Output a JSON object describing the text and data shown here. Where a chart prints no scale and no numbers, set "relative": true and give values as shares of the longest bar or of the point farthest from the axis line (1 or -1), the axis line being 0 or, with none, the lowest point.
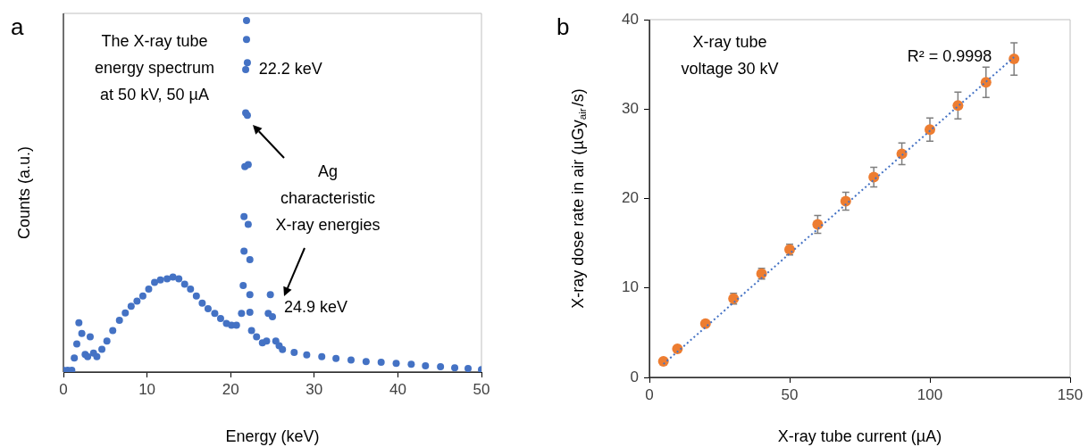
{
  "chart_data": [
    {
      "type": "scatter",
      "xlabel": "Energy (keV)",
      "ylabel": "Counts (a.u.)",
      "relative": true,
      "xlim": [
        0,
        50
      ],
      "xticks": [
        0,
        10,
        20,
        30,
        40,
        50
      ],
      "marker": "circle",
      "series": [
        {
          "color": "#4472c4",
          "x": [
            0,
            0.5,
            1.0,
            1.3,
            1.6,
            1.85,
            2.2,
            2.6,
            2.9,
            3.2,
            3.6,
            4.0,
            4.6,
            5.2,
            5.9,
            6.7,
            7.4,
            8.1,
            8.8,
            9.5,
            10.2,
            10.9,
            11.6,
            12.4,
            13.1,
            13.8,
            14.5,
            15.2,
            15.9,
            16.6,
            17.3,
            18.1,
            18.8,
            19.5,
            20.1,
            20.7,
            21.3,
            21.5,
            21.6,
            21.6,
            21.7,
            21.8,
            21.8,
            21.9,
            21.9,
            22.0,
            22.0,
            22.1,
            22.1,
            22.3,
            22.3,
            22.3,
            22.5,
            23.1,
            23.8,
            24.3,
            24.5,
            24.75,
            25.0,
            25.4,
            25.8,
            26.2,
            27.6,
            29.1,
            30.9,
            32.6,
            34.4,
            36.2,
            38.0,
            39.8,
            41.6,
            43.3,
            45.1,
            46.8,
            48.4,
            50
          ],
          "values": [
            0.005,
            0.005,
            0.005,
            0.04,
            0.08,
            0.14,
            0.11,
            0.05,
            0.044,
            0.1,
            0.054,
            0.044,
            0.065,
            0.088,
            0.118,
            0.147,
            0.168,
            0.187,
            0.202,
            0.216,
            0.236,
            0.255,
            0.262,
            0.265,
            0.27,
            0.265,
            0.25,
            0.236,
            0.216,
            0.196,
            0.18,
            0.167,
            0.152,
            0.138,
            0.133,
            0.133,
            0.167,
            0.246,
            0.344,
            0.442,
            0.584,
            0.737,
            0.86,
            0.946,
            1,
            0.88,
            0.73,
            0.59,
            0.42,
            0.32,
            0.22,
            0.17,
            0.118,
            0.1,
            0.083,
            0.088,
            0.167,
            0.22,
            0.157,
            0.088,
            0.075,
            0.064,
            0.056,
            0.049,
            0.044,
            0.039,
            0.034,
            0.03,
            0.028,
            0.025,
            0.022,
            0.018,
            0.015,
            0.012,
            0.01,
            0.007
          ]
        }
      ],
      "annotations": [
        "a",
        "The X-ray tube energy spectrum at 50 kV, 50 µA",
        {
          "text": "22.2 keV",
          "x": 22.2,
          "y": 0.86
        },
        "Ag characteristic X-ray energies",
        {
          "text": "24.9 keV",
          "x": 24.9,
          "y": 0.22
        }
      ]
    },
    {
      "type": "scatter",
      "xlabel": "X-ray tube current (µA)",
      "ylabel": "X-ray dose rate in air (µGy$_{air}$/s)",
      "xlim": [
        0,
        150
      ],
      "xticks": [
        0,
        50,
        100,
        150
      ],
      "ylim": [
        0,
        40
      ],
      "yticks": [
        0,
        10,
        20,
        30,
        40
      ],
      "marker": "circle",
      "series": [
        {
          "color": "#ed7d31",
          "x": [
            5,
            10,
            20,
            30,
            40,
            50,
            60,
            70,
            80,
            90,
            100,
            110,
            120,
            130
          ],
          "values": [
            1.8,
            3.2,
            6.0,
            8.8,
            11.6,
            14.3,
            17.1,
            19.7,
            22.4,
            25.0,
            27.7,
            30.4,
            33.0,
            35.6
          ],
          "errors": [
            null,
            null,
            null,
            0.6,
            0.6,
            0.6,
            1.0,
            1.0,
            1.1,
            1.2,
            1.3,
            1.5,
            1.7,
            1.8
          ]
        },
        {
          "type": "line",
          "color": "#4472c4",
          "line_style": "dotted",
          "marker": "none",
          "x": [
            5,
            130
          ],
          "values": [
            1.5,
            35.8
          ]
        }
      ],
      "annotations": [
        "b",
        "X-ray tube voltage 30 kV",
        "R² = 0.9998"
      ]
    }
  ]
}
